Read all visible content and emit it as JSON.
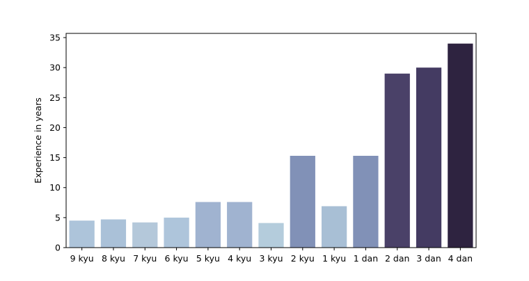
{
  "chart_data": {
    "type": "bar",
    "title": "",
    "xlabel": "",
    "ylabel": "Experience in years",
    "categories": [
      "9 kyu",
      "8 kyu",
      "7 kyu",
      "6 kyu",
      "5 kyu",
      "4 kyu",
      "3 kyu",
      "2 kyu",
      "1 kyu",
      "1 dan",
      "2 dan",
      "3 dan",
      "4 dan"
    ],
    "values": [
      4.5,
      4.7,
      4.2,
      5.0,
      7.6,
      7.6,
      4.1,
      15.3,
      6.9,
      15.3,
      29.0,
      30.0,
      34.0
    ],
    "colors": [
      "#adc4da",
      "#aac1d8",
      "#b4c8da",
      "#aec5db",
      "#a0b3d0",
      "#a0b3d0",
      "#b4ccdc",
      "#8191b7",
      "#a8bfd5",
      "#8191b7",
      "#4a4168",
      "#443b62",
      "#2e2340"
    ],
    "ylim": [
      0,
      35.7
    ],
    "yticks": [
      0,
      5,
      10,
      15,
      20,
      25,
      30,
      35
    ],
    "grid": false,
    "legend": "none"
  }
}
